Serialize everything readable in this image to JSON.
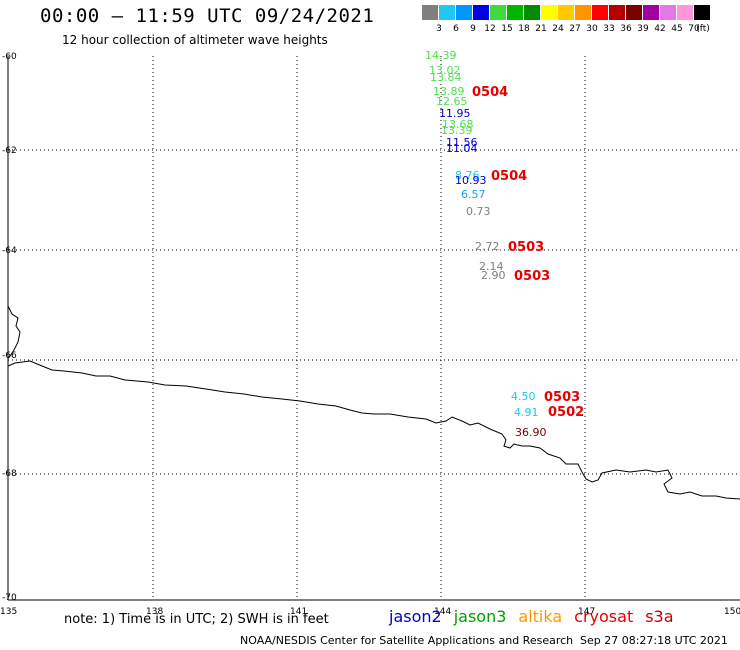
{
  "header": {
    "title": "00:00 – 11:59 UTC 09/24/2021",
    "subtitle": "12 hour collection of altimeter wave heights"
  },
  "legend": {
    "colors": [
      "#7f7f7f",
      "#1ec8f0",
      "#0096ff",
      "#0000e6",
      "#3cdc3c",
      "#00b400",
      "#008c00",
      "#ffff00",
      "#ffc800",
      "#ff9600",
      "#ff0000",
      "#b40000",
      "#780000",
      "#a000a0",
      "#e678e6",
      "#ff96dc",
      "#000000"
    ],
    "labels": [
      "3",
      "6",
      "9",
      "12",
      "15",
      "18",
      "21",
      "24",
      "27",
      "30",
      "33",
      "36",
      "39",
      "42",
      "45",
      "70",
      "(ft)"
    ]
  },
  "axes": {
    "lat_labels": [
      "-60",
      "-62",
      "-64",
      "-66",
      "-68",
      "-70"
    ],
    "lon_labels": [
      "135",
      "138",
      "141",
      "144",
      "147",
      "150"
    ]
  },
  "observations": [
    {
      "text": "14.39",
      "color": "#4ee04e"
    },
    {
      "text": "13.02",
      "color": "#4ee04e"
    },
    {
      "text": "13.84",
      "color": "#4ee04e"
    },
    {
      "text": "13.89",
      "color": "#4ee04e"
    },
    {
      "text": "12.65",
      "color": "#4ee04e"
    },
    {
      "text": "11.95",
      "color": "#0000c8"
    },
    {
      "text": "13.68",
      "color": "#4ee04e"
    },
    {
      "text": "13.39",
      "color": "#4ee04e"
    },
    {
      "text": "11.56",
      "color": "#0000c8"
    },
    {
      "text": "11.04",
      "color": "#0000c8"
    },
    {
      "text": "8.76",
      "color": "#1ec8f0"
    },
    {
      "text": "10.93",
      "color": "#0000c8"
    },
    {
      "text": "6.57",
      "color": "#1ea0f0"
    },
    {
      "text": "0.73",
      "color": "#7f7f7f"
    },
    {
      "text": "2.72",
      "color": "#7f7f7f"
    },
    {
      "text": "2.14",
      "color": "#7f7f7f"
    },
    {
      "text": "2.90",
      "color": "#7f7f7f"
    },
    {
      "text": "4.50",
      "color": "#1ec8f0"
    },
    {
      "text": "4.91",
      "color": "#1ec8f0"
    },
    {
      "text": "36.90",
      "color": "#780000"
    }
  ],
  "time_labels": [
    {
      "text": "0504",
      "color": "#e60000"
    },
    {
      "text": "0504",
      "color": "#e60000"
    },
    {
      "text": "0503",
      "color": "#e60000"
    },
    {
      "text": "0503",
      "color": "#e60000"
    },
    {
      "text": "0503",
      "color": "#e60000"
    },
    {
      "text": "0502",
      "color": "#e60000"
    }
  ],
  "footer": {
    "note": "note: 1) Time is in UTC; 2) SWH is in feet",
    "satellites": [
      {
        "name": "jason2",
        "color": "#0000c8"
      },
      {
        "name": "jason3",
        "color": "#00a000"
      },
      {
        "name": "altika",
        "color": "#ff9600"
      },
      {
        "name": "cryosat",
        "color": "#e60000"
      },
      {
        "name": "s3a",
        "color": "#c80000"
      }
    ],
    "credit": "NOAA/NESDIS Center for Satellite Applications and Research",
    "timestamp": "Sep 27 08:27:18 UTC 2021"
  }
}
